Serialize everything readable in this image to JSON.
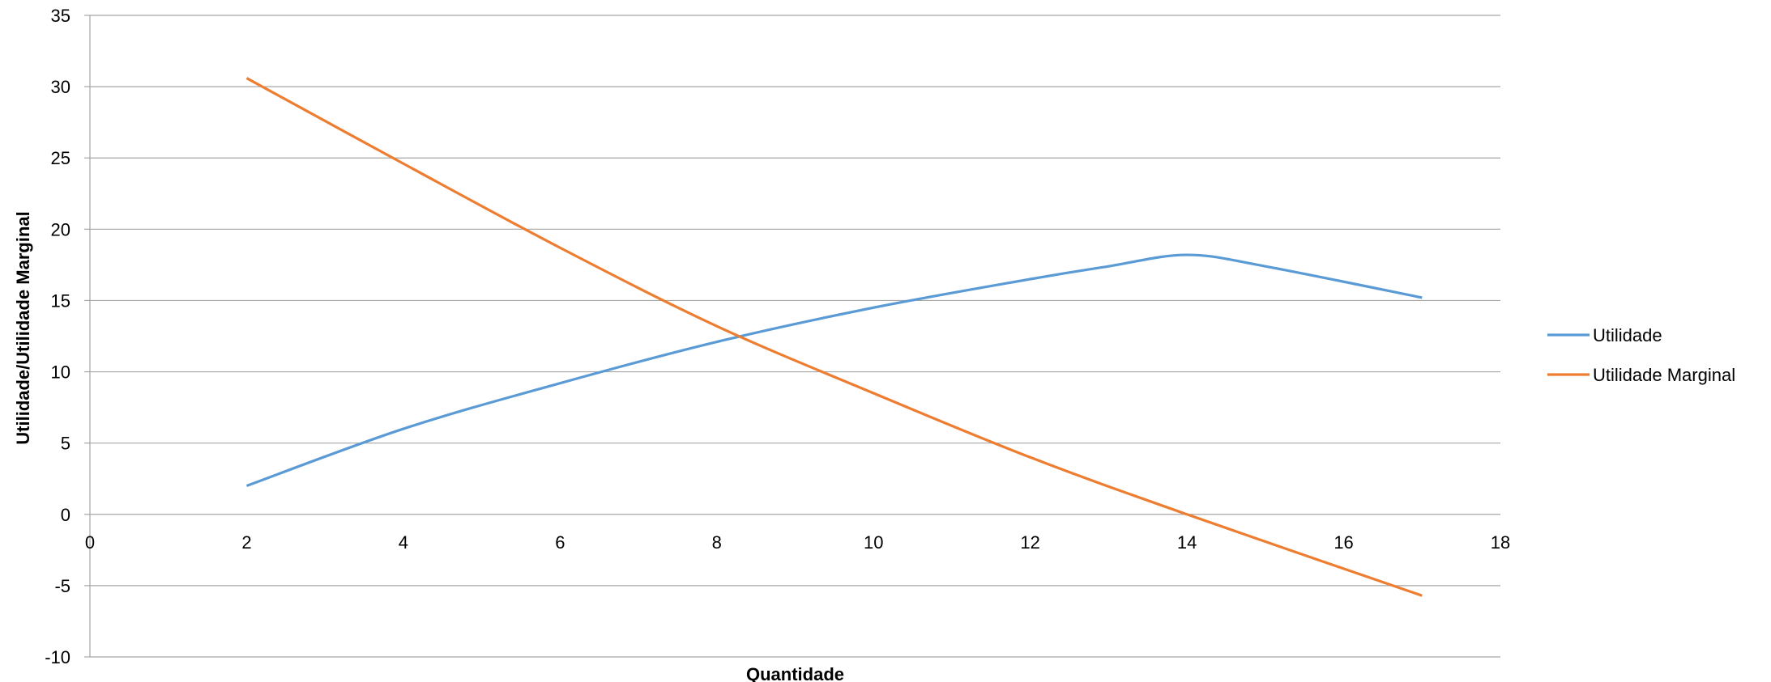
{
  "chart_data": {
    "type": "line",
    "title": "",
    "xlabel": "Quantidade",
    "ylabel": "Utilidade/Utilidade Marginal",
    "xlim": [
      0,
      18
    ],
    "ylim": [
      -10,
      35
    ],
    "x_ticks": [
      0,
      2,
      4,
      6,
      8,
      10,
      12,
      14,
      16,
      18
    ],
    "y_ticks": [
      -10,
      -5,
      0,
      5,
      10,
      15,
      20,
      25,
      30,
      35
    ],
    "grid": "horizontal",
    "legend_position": "right",
    "smooth": true,
    "series": [
      {
        "name": "Utilidade",
        "color": "#5b9bd5",
        "x": [
          2,
          4,
          6,
          8,
          10,
          12,
          13,
          14,
          15,
          17
        ],
        "y": [
          2,
          6,
          9.2,
          12.1,
          14.5,
          16.5,
          17.4,
          18.2,
          17.4,
          15.2
        ]
      },
      {
        "name": "Utilidade Marginal",
        "color": "#ed7d31",
        "x": [
          2,
          4,
          6,
          8,
          10,
          12,
          14,
          17
        ],
        "y": [
          30.6,
          24.6,
          18.7,
          13.2,
          8.5,
          4,
          0,
          -5.7
        ]
      }
    ]
  }
}
